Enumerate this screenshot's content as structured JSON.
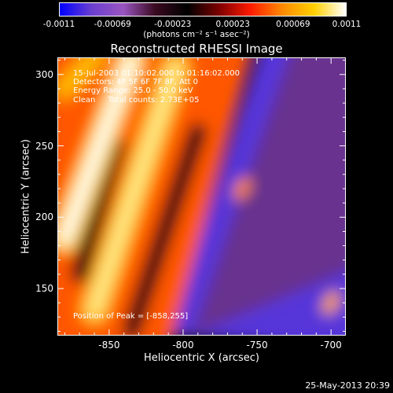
{
  "colorbar": {
    "ticks": [
      "-0.0011",
      "-0.00069",
      "-0.00023",
      "0.00023",
      "0.00069",
      "0.0011"
    ],
    "units": "(photons cm⁻² s⁻¹ asec⁻²)",
    "range": [
      -0.0011,
      0.0011
    ],
    "colormap": [
      "#0000ff",
      "#6a3fd0",
      "#9a55c0",
      "#3a0a20",
      "#000000",
      "#7a0000",
      "#ff1a00",
      "#ff8a00",
      "#ffd000",
      "#ffffff"
    ]
  },
  "info": {
    "time": "15-Jul-2003 01:10:02.000 to 01:16:02.000",
    "detectors": "Detectors: 4F 5F 6F 7F 8F, Att 0",
    "energy": "Energy Range: 25.0 - 50.0 keV",
    "clean": "Clean     Total counts: 2.73E+05",
    "peak": "Position of Peak = [-858,255]"
  },
  "footer": {
    "timestamp": "25-May-2013 20:39"
  },
  "chart_data": {
    "type": "heatmap",
    "title": "Reconstructed RHESSI Image",
    "xlabel": "Heliocentric X (arcsec)",
    "ylabel": "Heliocentric Y (arcsec)",
    "xlim": [
      -885,
      -690
    ],
    "ylim": [
      117,
      312
    ],
    "xticks": [
      -850,
      -800,
      -750,
      -700
    ],
    "yticks": [
      150,
      200,
      250,
      300
    ],
    "xtick_labels": [
      "-850",
      "-800",
      "-750",
      "-700"
    ],
    "ytick_labels": [
      "150",
      "200",
      "250",
      "300"
    ],
    "peak_position": [
      -858,
      255
    ],
    "bright_ridges": [
      {
        "from": [
          -880,
          185
        ],
        "to": [
          -835,
          310
        ],
        "intensity": 0.0011
      },
      {
        "from": [
          -860,
          135
        ],
        "to": [
          -805,
          305
        ],
        "intensity": 0.001
      },
      {
        "from": [
          -880,
          290
        ],
        "to": [
          -860,
          312
        ],
        "intensity": 0.0008
      }
    ],
    "dark_lanes": [
      {
        "from": [
          -870,
          160
        ],
        "to": [
          -845,
          250
        ],
        "intensity": -0.0002
      },
      {
        "from": [
          -835,
          120
        ],
        "to": [
          -790,
          260
        ],
        "intensity": -0.0002
      }
    ],
    "negative_region": {
      "from": [
        -810,
        117
      ],
      "to": [
        -690,
        312
      ],
      "intensity": -0.0009
    },
    "small_sources": [
      {
        "center": [
          -760,
          220
        ],
        "intensity": 0.0006
      },
      {
        "center": [
          -700,
          140
        ],
        "intensity": 0.0007
      },
      {
        "center": [
          -785,
          275
        ],
        "intensity": 0.0005
      }
    ]
  }
}
